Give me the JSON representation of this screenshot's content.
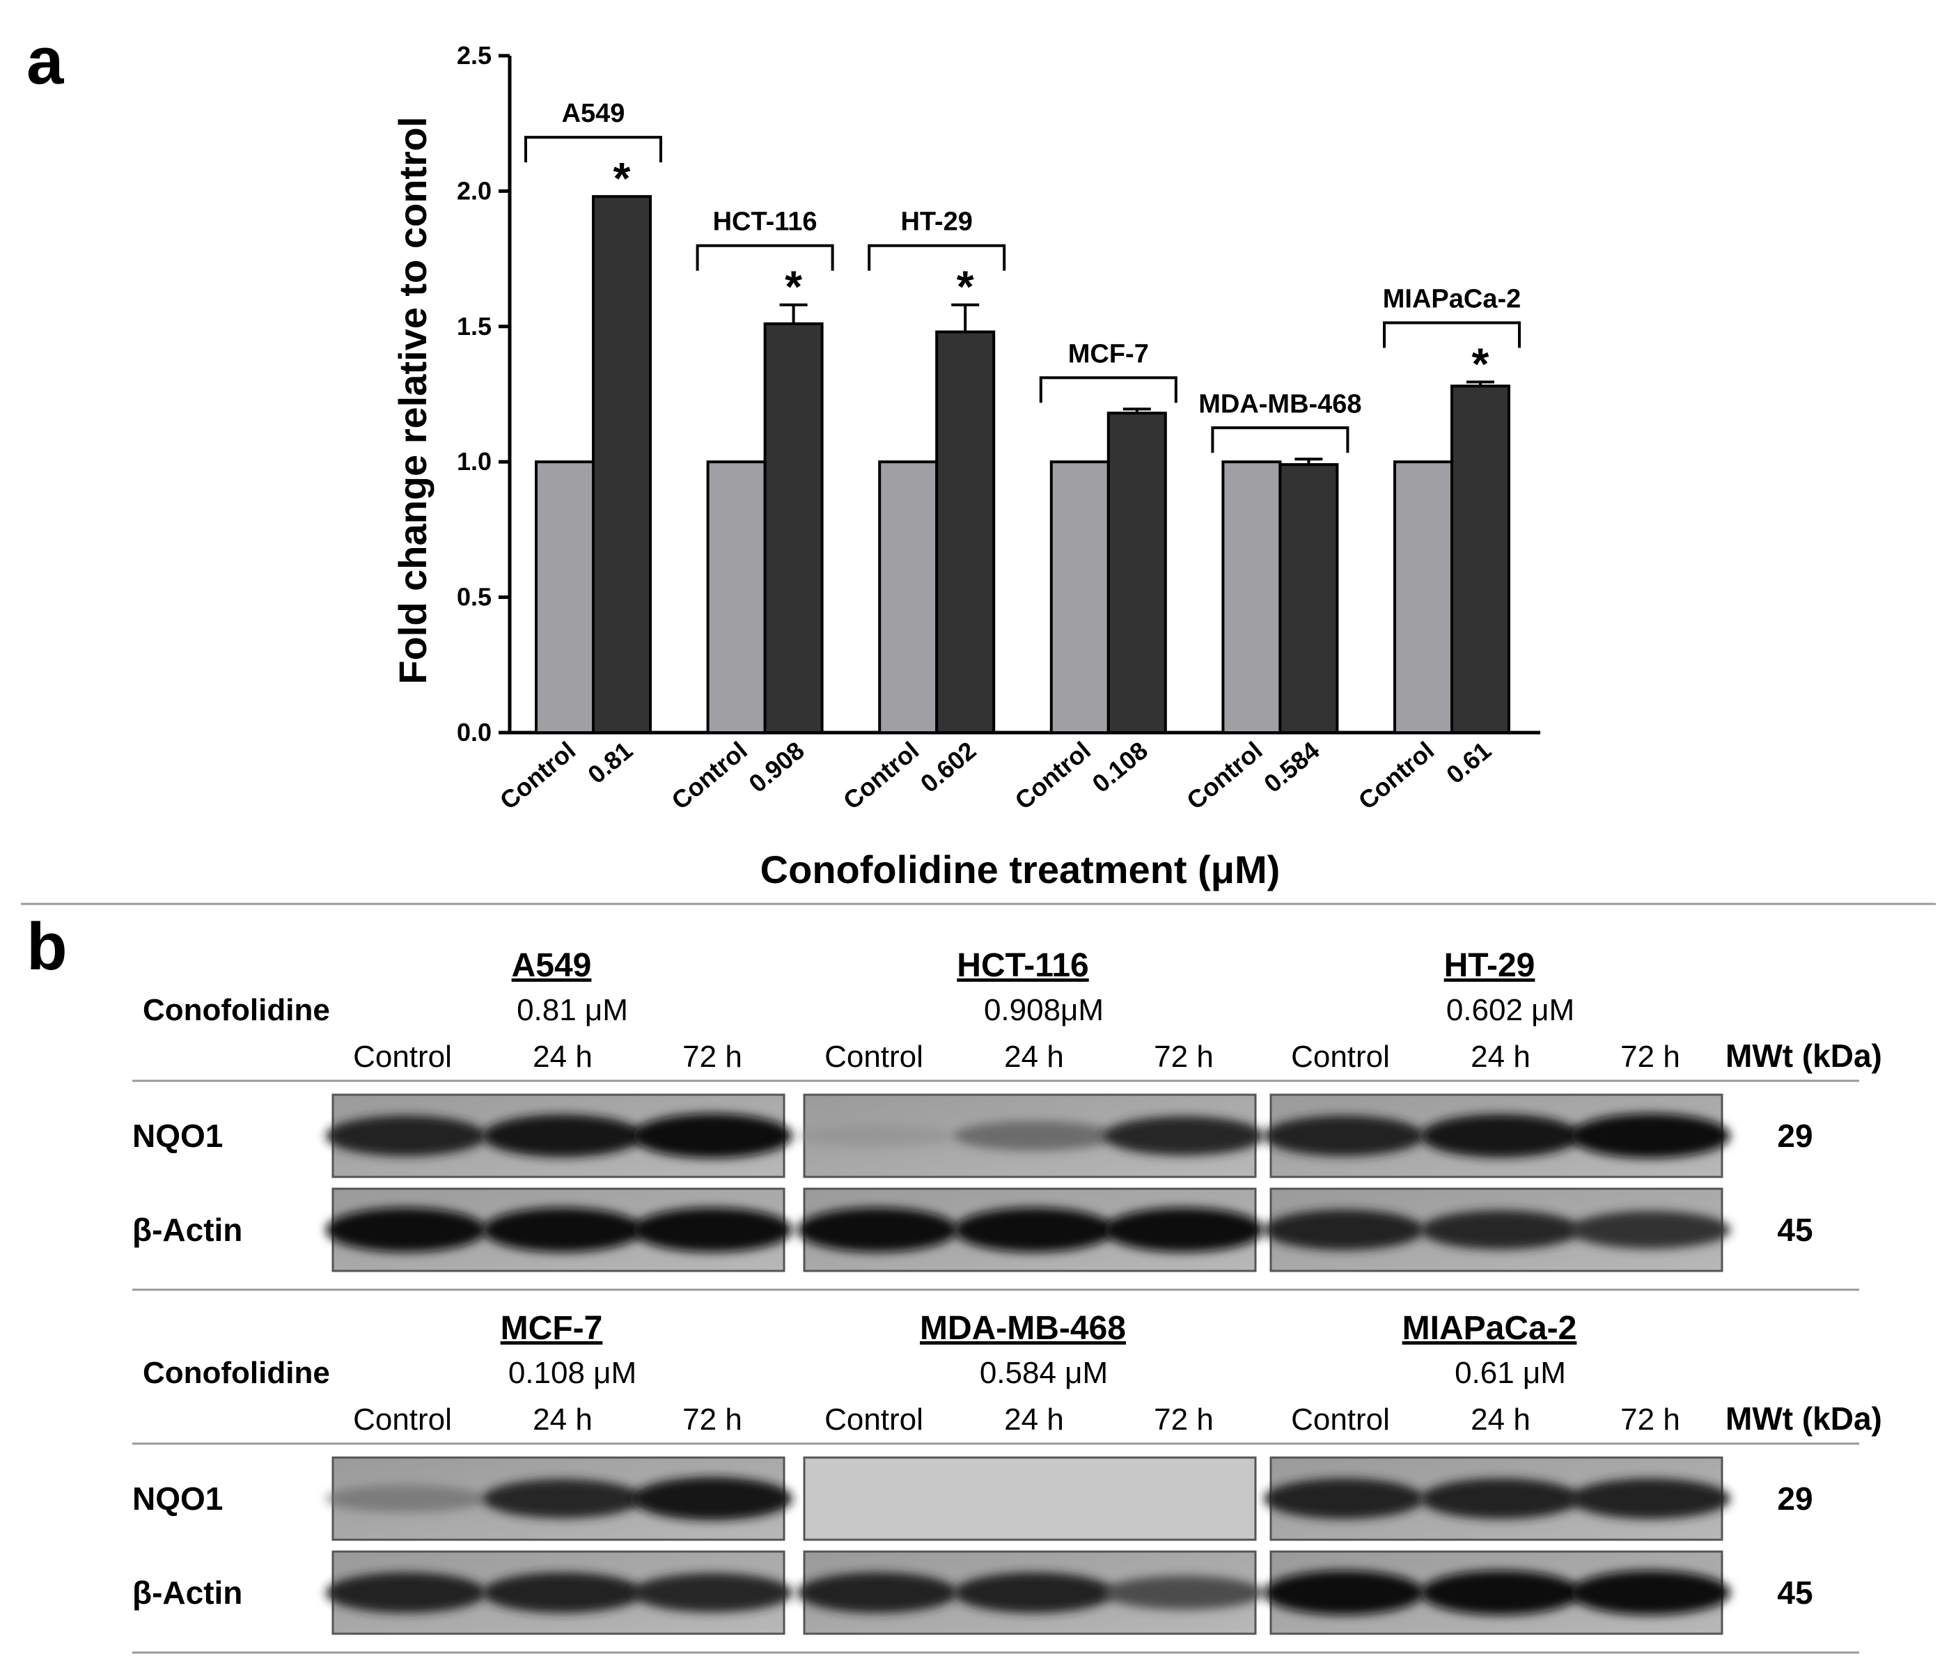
{
  "panel_a": {
    "letter": "a"
  },
  "panel_b": {
    "letter": "b"
  },
  "chart_data": {
    "type": "bar",
    "xlabel": "Conofolidine treatment (μM)",
    "ylabel": "Fold change relative to control",
    "ylim": [
      0,
      2.5
    ],
    "yticks": [
      "0.0",
      "0.5",
      "1.0",
      "1.5",
      "2.0",
      "2.5"
    ],
    "grid": false,
    "colors": {
      "control": "#a0a0a4",
      "treated": "#333333"
    },
    "groups": [
      {
        "name": "A549",
        "categories": [
          "Control",
          "0.81"
        ],
        "values": [
          1.0,
          1.98
        ],
        "errors": [
          0,
          0
        ],
        "significant": true
      },
      {
        "name": "HCT-116",
        "categories": [
          "Control",
          "0.908"
        ],
        "values": [
          1.0,
          1.51
        ],
        "errors": [
          0,
          0.07
        ],
        "significant": true
      },
      {
        "name": "HT-29",
        "categories": [
          "Control",
          "0.602"
        ],
        "values": [
          1.0,
          1.48
        ],
        "errors": [
          0,
          0.1
        ],
        "significant": true
      },
      {
        "name": "MCF-7",
        "categories": [
          "Control",
          "0.108"
        ],
        "values": [
          1.0,
          1.18
        ],
        "errors": [
          0,
          0.015
        ],
        "significant": false
      },
      {
        "name": "MDA-MB-468",
        "categories": [
          "Control",
          "0.584"
        ],
        "values": [
          1.0,
          0.99
        ],
        "errors": [
          0,
          0.02
        ],
        "significant": false
      },
      {
        "name": "MIAPaCa-2",
        "categories": [
          "Control",
          "0.61"
        ],
        "values": [
          1.0,
          1.28
        ],
        "errors": [
          0,
          0.015
        ],
        "significant": true
      }
    ],
    "significance_marker": "*"
  },
  "blots": {
    "treatment_label": "Conofolidine",
    "mw_header": "MWt (kDa)",
    "lanes": [
      "Control",
      "24 h",
      "72 h"
    ],
    "rows": [
      {
        "label": "NQO1",
        "mw": "29"
      },
      {
        "label": "β-Actin",
        "mw": "45"
      }
    ],
    "top_cells": [
      {
        "name": "A549",
        "conc": "0.81 μM",
        "nqo1": [
          0.85,
          0.92,
          1.0
        ],
        "actin": [
          1.0,
          1.0,
          1.0
        ]
      },
      {
        "name": "HCT-116",
        "conc": "0.908μM",
        "nqo1": [
          0.15,
          0.45,
          0.8
        ],
        "actin": [
          1.0,
          1.0,
          1.0
        ]
      },
      {
        "name": "HT-29",
        "conc": "0.602 μM",
        "nqo1": [
          0.85,
          0.95,
          1.0
        ],
        "actin": [
          0.85,
          0.8,
          0.75
        ]
      }
    ],
    "bottom_cells": [
      {
        "name": "MCF-7",
        "conc": "0.108 μM",
        "nqo1": [
          0.35,
          0.8,
          0.95
        ],
        "actin": [
          0.85,
          0.85,
          0.8
        ]
      },
      {
        "name": "MDA-MB-468",
        "conc": "0.584 μM",
        "nqo1": [
          0,
          0,
          0
        ],
        "actin": [
          0.85,
          0.85,
          0.6
        ]
      },
      {
        "name": "MIAPaCa-2",
        "conc": "0.61 μM",
        "nqo1": [
          0.85,
          0.85,
          0.85
        ],
        "actin": [
          1.0,
          1.0,
          1.0
        ]
      }
    ]
  }
}
